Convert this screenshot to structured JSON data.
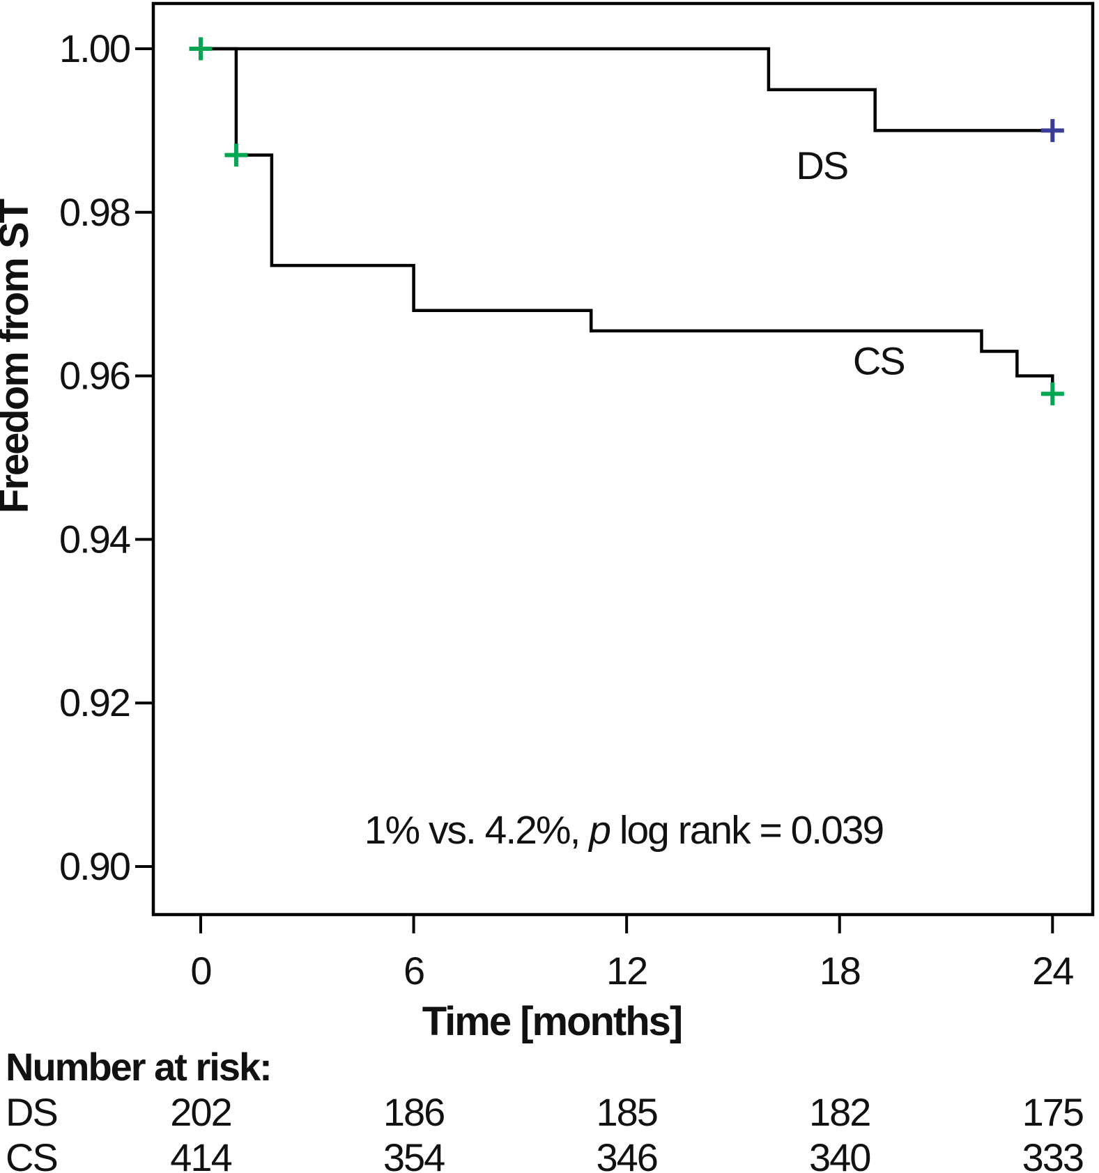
{
  "chart_data": {
    "type": "line",
    "subtype": "kaplan-meier-step-survival",
    "title": "",
    "grid": false,
    "legend_position": "labels-on-curves",
    "x_axis": {
      "label": "Time [months]",
      "tick_values": [
        0,
        6,
        12,
        18,
        24
      ],
      "tick_labels": [
        "0",
        "6",
        "12",
        "18",
        "24"
      ],
      "range": [
        -1.3,
        25.1
      ]
    },
    "y_axis": {
      "label": "Freedom from ST",
      "tick_values": [
        1.0,
        0.98,
        0.96,
        0.94,
        0.92,
        0.9
      ],
      "tick_labels": [
        "1.00",
        "0.98",
        "0.96",
        "0.94",
        "0.92",
        "0.90"
      ],
      "range": [
        0.894,
        1.006
      ]
    },
    "series": [
      {
        "name": "DS",
        "label": "DS",
        "color": "#000000",
        "censor_color": "#3b3b98",
        "points": [
          [
            0,
            1.0
          ],
          [
            16,
            1.0
          ],
          [
            16,
            0.995
          ],
          [
            19,
            0.995
          ],
          [
            19,
            0.99
          ],
          [
            24,
            0.99
          ]
        ],
        "censor_marks": [
          [
            24,
            0.99
          ]
        ],
        "label_at": [
          17.5,
          0.9857
        ]
      },
      {
        "name": "CS",
        "label": "CS",
        "color": "#000000",
        "censor_color": "#00a651",
        "points": [
          [
            0,
            1.0
          ],
          [
            1,
            1.0
          ],
          [
            1,
            0.987
          ],
          [
            2,
            0.987
          ],
          [
            2,
            0.9735
          ],
          [
            6,
            0.9735
          ],
          [
            6,
            0.968
          ],
          [
            11,
            0.968
          ],
          [
            11,
            0.9655
          ],
          [
            22,
            0.9655
          ],
          [
            22,
            0.963
          ],
          [
            23,
            0.963
          ],
          [
            23,
            0.96
          ],
          [
            24,
            0.96
          ],
          [
            24,
            0.9578
          ]
        ],
        "censor_marks": [
          [
            0,
            1.0
          ],
          [
            1,
            0.987
          ],
          [
            24,
            0.9578
          ]
        ],
        "label_at": [
          19.1,
          0.9618
        ]
      }
    ],
    "annotation": {
      "pre": "1% vs. 4.2%, ",
      "italic": "p",
      "post": " log rank = 0.039"
    },
    "number_at_risk": {
      "title": "Number at risk:",
      "time_points": [
        0,
        6,
        12,
        18,
        24
      ],
      "rows": [
        {
          "label": "DS",
          "values": [
            "202",
            "186",
            "185",
            "182",
            "175"
          ]
        },
        {
          "label": "CS",
          "values": [
            "414",
            "354",
            "346",
            "340",
            "333"
          ]
        }
      ]
    }
  }
}
